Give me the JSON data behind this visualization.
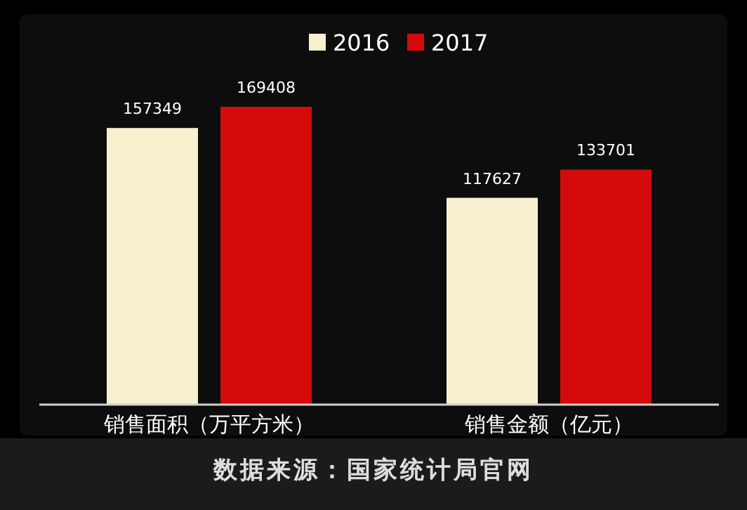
{
  "chart_data": {
    "type": "bar",
    "categories": [
      "销售面积（万平方米）",
      "销售金额（亿元）"
    ],
    "series": [
      {
        "name": "2016",
        "color": "#f7f1d0",
        "values": [
          157349,
          117627
        ]
      },
      {
        "name": "2017",
        "color": "#d50a0a",
        "values": [
          169408,
          133701
        ]
      }
    ],
    "data_labels": true,
    "legend": "top",
    "annotations": [
      "数据来源：国家统计局官网"
    ]
  }
}
